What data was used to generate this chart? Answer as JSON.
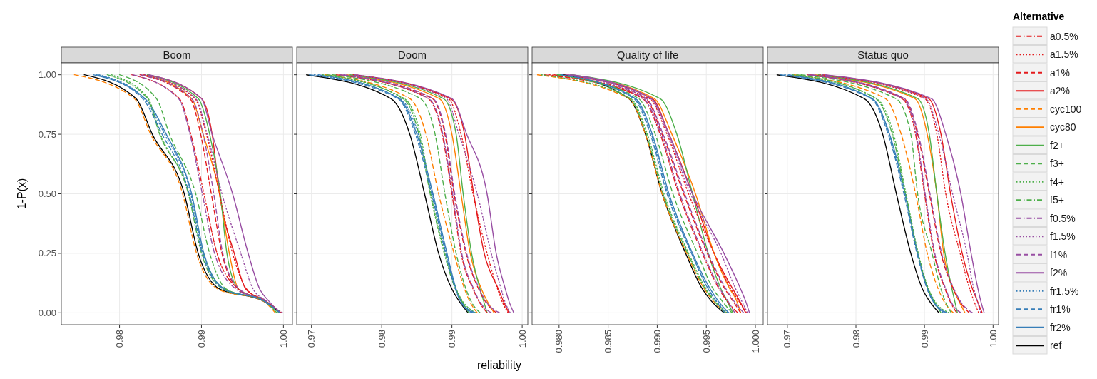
{
  "chart_data": [
    {
      "type": "line",
      "title": "Boom",
      "ylabel": "1-P(x)",
      "grid": true,
      "legend": "right",
      "legend_title": "Alternative",
      "xlim": [
        0.9729,
        1.0011
      ],
      "xticks": [
        0.98,
        0.99,
        {
          "value": 1,
          "label": "1.00"
        }
      ],
      "ylim": [
        -0.05,
        1.05
      ],
      "yticks": [
        {
          "value": 0,
          "label": "0.00"
        },
        0.25,
        {
          "value": 0.5,
          "label": "0.50"
        },
        0.75,
        {
          "value": 1,
          "label": "1.00"
        }
      ],
      "series": [
        {
          "name": "a0.5%",
          "color": "#e41a1c",
          "line_style": "dashdot",
          "x": [
            0.9815,
            0.9873,
            0.9887,
            0.9903,
            0.9919,
            0.9945,
            0.9977,
            0.9997
          ],
          "values": [
            1,
            0.9,
            0.75,
            0.5,
            0.25,
            0.1,
            0.05,
            0
          ]
        },
        {
          "name": "a1.5%",
          "color": "#e41a1c",
          "line_style": "dotted",
          "x": [
            0.983,
            0.9892,
            0.9906,
            0.9922,
            0.9938,
            0.9955,
            0.9978,
            0.9998
          ],
          "values": [
            1,
            0.9,
            0.75,
            0.5,
            0.25,
            0.1,
            0.05,
            0
          ]
        },
        {
          "name": "a1%",
          "color": "#e41a1c",
          "line_style": "dashed",
          "x": [
            0.9825,
            0.9886,
            0.9899,
            0.9912,
            0.9925,
            0.9945,
            0.9977,
            0.9996
          ],
          "values": [
            1,
            0.9,
            0.75,
            0.5,
            0.25,
            0.1,
            0.05,
            0
          ]
        },
        {
          "name": "a2%",
          "color": "#e41a1c",
          "line_style": "solid",
          "x": [
            0.9835,
            0.99,
            0.9913,
            0.9922,
            0.994,
            0.9954,
            0.9978,
            0.9996
          ],
          "values": [
            1,
            0.9,
            0.75,
            0.5,
            0.25,
            0.1,
            0.05,
            0
          ]
        },
        {
          "name": "cyc100",
          "color": "#ff7f00",
          "line_style": "dashed",
          "x": [
            0.9745,
            0.9818,
            0.9838,
            0.9877,
            0.9894,
            0.992,
            0.9975,
            0.999
          ],
          "values": [
            1,
            0.9,
            0.75,
            0.5,
            0.25,
            0.1,
            0.05,
            0
          ]
        },
        {
          "name": "cyc80",
          "color": "#ff7f00",
          "line_style": "solid",
          "x": [
            0.9829,
            0.9888,
            0.9902,
            0.9922,
            0.9934,
            0.9945,
            0.9977,
            0.9996
          ],
          "values": [
            1,
            0.9,
            0.75,
            0.5,
            0.25,
            0.1,
            0.05,
            0
          ]
        },
        {
          "name": "f2+",
          "color": "#4daf4a",
          "line_style": "solid",
          "x": [
            0.9834,
            0.9896,
            0.991,
            0.9923,
            0.9931,
            0.9945,
            0.9978,
            0.9996
          ],
          "values": [
            1,
            0.9,
            0.75,
            0.5,
            0.25,
            0.1,
            0.05,
            0
          ]
        },
        {
          "name": "f3+",
          "color": "#4daf4a",
          "line_style": "dashed",
          "x": [
            0.98,
            0.9845,
            0.9861,
            0.9893,
            0.991,
            0.993,
            0.9976,
            0.9995
          ],
          "values": [
            1,
            0.9,
            0.75,
            0.5,
            0.25,
            0.1,
            0.05,
            0
          ]
        },
        {
          "name": "f4+",
          "color": "#4daf4a",
          "line_style": "dotted",
          "x": [
            0.979,
            0.9835,
            0.985,
            0.9885,
            0.9902,
            0.9928,
            0.9976,
            0.9993
          ],
          "values": [
            1,
            0.9,
            0.75,
            0.5,
            0.25,
            0.1,
            0.05,
            0
          ]
        },
        {
          "name": "f5+",
          "color": "#4daf4a",
          "line_style": "dashdot",
          "x": [
            0.9785,
            0.9834,
            0.9849,
            0.9884,
            0.99,
            0.9926,
            0.9976,
            0.9992
          ],
          "values": [
            1,
            0.9,
            0.75,
            0.5,
            0.25,
            0.1,
            0.05,
            0
          ]
        },
        {
          "name": "f0.5%",
          "color": "#984ea3",
          "line_style": "dashdot",
          "x": [
            0.9816,
            0.9872,
            0.9886,
            0.9901,
            0.9916,
            0.9942,
            0.9977,
            0.9996
          ],
          "values": [
            1,
            0.9,
            0.75,
            0.5,
            0.25,
            0.1,
            0.05,
            0
          ]
        },
        {
          "name": "f1.5%",
          "color": "#984ea3",
          "line_style": "dotted",
          "x": [
            0.9831,
            0.9893,
            0.9907,
            0.9925,
            0.9948,
            0.9963,
            0.9979,
            0.9999
          ],
          "values": [
            1,
            0.9,
            0.75,
            0.5,
            0.25,
            0.1,
            0.05,
            0
          ]
        },
        {
          "name": "f1%",
          "color": "#984ea3",
          "line_style": "dashed",
          "x": [
            0.9826,
            0.9888,
            0.9902,
            0.9915,
            0.9926,
            0.9946,
            0.9977,
            0.9996
          ],
          "values": [
            1,
            0.9,
            0.75,
            0.5,
            0.25,
            0.1,
            0.05,
            0
          ]
        },
        {
          "name": "f2%",
          "color": "#984ea3",
          "line_style": "solid",
          "x": [
            0.9836,
            0.99,
            0.9913,
            0.9938,
            0.9957,
            0.9971,
            0.9982,
            0.9996
          ],
          "values": [
            1,
            0.9,
            0.75,
            0.5,
            0.25,
            0.1,
            0.05,
            0
          ]
        },
        {
          "name": "fr1.5%",
          "color": "#377eb8",
          "line_style": "dotted",
          "x": [
            0.9775,
            0.983,
            0.9855,
            0.9887,
            0.9902,
            0.9928,
            0.9976,
            0.9996
          ],
          "values": [
            1,
            0.9,
            0.75,
            0.5,
            0.25,
            0.1,
            0.05,
            0
          ]
        },
        {
          "name": "fr1%",
          "color": "#377eb8",
          "line_style": "dashed",
          "x": [
            0.9772,
            0.9828,
            0.9852,
            0.9885,
            0.9901,
            0.9927,
            0.9976,
            0.9996
          ],
          "values": [
            1,
            0.9,
            0.75,
            0.5,
            0.25,
            0.1,
            0.05,
            0
          ]
        },
        {
          "name": "fr2%",
          "color": "#377eb8",
          "line_style": "solid",
          "x": [
            0.9768,
            0.9831,
            0.9857,
            0.9888,
            0.9903,
            0.9928,
            0.9976,
            0.9996
          ],
          "values": [
            1,
            0.9,
            0.75,
            0.5,
            0.25,
            0.1,
            0.05,
            0
          ]
        },
        {
          "name": "ref",
          "color": "#000000",
          "line_style": "solid",
          "x": [
            0.9757,
            0.982,
            0.984,
            0.9879,
            0.9896,
            0.9922,
            0.9975,
            0.9996
          ],
          "values": [
            1,
            0.9,
            0.75,
            0.5,
            0.25,
            0.1,
            0.05,
            0
          ]
        }
      ]
    },
    {
      "type": "line",
      "title": "Doom",
      "xlabel": "reliability",
      "grid": true,
      "tick_labels": "x",
      "xlim": [
        0.9679,
        1.0008
      ],
      "xticks": [
        0.97,
        0.98,
        0.99,
        {
          "value": 1,
          "label": "1.00"
        }
      ],
      "ylim": [
        -0.05,
        1.05
      ],
      "yticks": [
        0,
        0.25,
        0.5,
        0.75,
        1
      ],
      "series": [
        {
          "color": "#e41a1c",
          "line_style": "dashdot",
          "x": [
            0.974,
            0.9866,
            0.9886,
            0.99,
            0.9913,
            0.993,
            0.9938,
            0.995
          ],
          "values": [
            1,
            0.9,
            0.75,
            0.5,
            0.25,
            0.1,
            0.05,
            0
          ]
        },
        {
          "color": "#e41a1c",
          "line_style": "dotted",
          "x": [
            0.976,
            0.9895,
            0.9913,
            0.993,
            0.995,
            0.9965,
            0.9971,
            0.998
          ],
          "values": [
            1,
            0.9,
            0.75,
            0.5,
            0.25,
            0.1,
            0.05,
            0
          ]
        },
        {
          "color": "#e41a1c",
          "line_style": "dashed",
          "x": [
            0.9735,
            0.9872,
            0.989,
            0.9903,
            0.992,
            0.9938,
            0.9947,
            0.9963
          ],
          "values": [
            1,
            0.9,
            0.75,
            0.5,
            0.25,
            0.1,
            0.05,
            0
          ]
        },
        {
          "color": "#e41a1c",
          "line_style": "solid",
          "x": [
            0.9759,
            0.9898,
            0.9918,
            0.9931,
            0.9946,
            0.9966,
            0.9973,
            0.9981
          ],
          "values": [
            1,
            0.9,
            0.75,
            0.5,
            0.25,
            0.1,
            0.05,
            0
          ]
        },
        {
          "color": "#ff7f00",
          "line_style": "dashed",
          "x": [
            0.972,
            0.984,
            0.9863,
            0.9881,
            0.9903,
            0.9918,
            0.9925,
            0.9936
          ],
          "values": [
            1,
            0.9,
            0.75,
            0.5,
            0.25,
            0.1,
            0.05,
            0
          ]
        },
        {
          "color": "#ff7f00",
          "line_style": "solid",
          "x": [
            0.975,
            0.9882,
            0.99,
            0.9913,
            0.9926,
            0.9942,
            0.995,
            0.996
          ],
          "values": [
            1,
            0.9,
            0.75,
            0.5,
            0.25,
            0.1,
            0.05,
            0
          ]
        },
        {
          "color": "#4daf4a",
          "line_style": "solid",
          "x": [
            0.9755,
            0.9888,
            0.9906,
            0.9916,
            0.9928,
            0.994,
            0.9945,
            0.995
          ],
          "values": [
            1,
            0.9,
            0.75,
            0.5,
            0.25,
            0.1,
            0.05,
            0
          ]
        },
        {
          "color": "#4daf4a",
          "line_style": "dashed",
          "x": [
            0.973,
            0.9855,
            0.9876,
            0.989,
            0.9906,
            0.992,
            0.9927,
            0.994
          ],
          "values": [
            1,
            0.9,
            0.75,
            0.5,
            0.25,
            0.1,
            0.05,
            0
          ]
        },
        {
          "color": "#4daf4a",
          "line_style": "dotted",
          "x": [
            0.9716,
            0.9832,
            0.9855,
            0.987,
            0.989,
            0.9906,
            0.9915,
            0.9934
          ],
          "values": [
            1,
            0.9,
            0.75,
            0.5,
            0.25,
            0.1,
            0.05,
            0
          ]
        },
        {
          "color": "#4daf4a",
          "line_style": "dashdot",
          "x": [
            0.9722,
            0.983,
            0.9853,
            0.9869,
            0.9889,
            0.9905,
            0.9914,
            0.9924
          ],
          "values": [
            1,
            0.9,
            0.75,
            0.5,
            0.25,
            0.1,
            0.05,
            0
          ]
        },
        {
          "color": "#984ea3",
          "line_style": "dashdot",
          "x": [
            0.9741,
            0.9867,
            0.9887,
            0.9901,
            0.9914,
            0.9931,
            0.9939,
            0.9956
          ],
          "values": [
            1,
            0.9,
            0.75,
            0.5,
            0.25,
            0.1,
            0.05,
            0
          ]
        },
        {
          "color": "#984ea3",
          "line_style": "dotted",
          "x": [
            0.9761,
            0.9892,
            0.991,
            0.9936,
            0.9956,
            0.997,
            0.9975,
            0.9983
          ],
          "values": [
            1,
            0.9,
            0.75,
            0.5,
            0.25,
            0.1,
            0.05,
            0
          ]
        },
        {
          "color": "#984ea3",
          "line_style": "dashed",
          "x": [
            0.9746,
            0.9873,
            0.9891,
            0.9904,
            0.9921,
            0.9939,
            0.9948,
            0.9968
          ],
          "values": [
            1,
            0.9,
            0.75,
            0.5,
            0.25,
            0.1,
            0.05,
            0
          ]
        },
        {
          "color": "#984ea3",
          "line_style": "solid",
          "x": [
            0.9762,
            0.99,
            0.9921,
            0.995,
            0.9963,
            0.9976,
            0.9981,
            0.9988
          ],
          "values": [
            1,
            0.9,
            0.75,
            0.5,
            0.25,
            0.1,
            0.05,
            0
          ]
        },
        {
          "color": "#377eb8",
          "line_style": "dotted",
          "x": [
            0.9704,
            0.9826,
            0.9852,
            0.9872,
            0.9892,
            0.9905,
            0.9912,
            0.9927
          ],
          "values": [
            1,
            0.9,
            0.75,
            0.5,
            0.25,
            0.1,
            0.05,
            0
          ]
        },
        {
          "color": "#377eb8",
          "line_style": "dashed",
          "x": [
            0.9697,
            0.9823,
            0.9848,
            0.9871,
            0.9891,
            0.9905,
            0.9912,
            0.9933
          ],
          "values": [
            1,
            0.9,
            0.75,
            0.5,
            0.25,
            0.1,
            0.05,
            0
          ]
        },
        {
          "color": "#377eb8",
          "line_style": "solid",
          "x": [
            0.971,
            0.9825,
            0.985,
            0.9873,
            0.9893,
            0.9906,
            0.9913,
            0.993
          ],
          "values": [
            1,
            0.9,
            0.75,
            0.5,
            0.25,
            0.1,
            0.05,
            0
          ]
        },
        {
          "color": "#000000",
          "line_style": "solid",
          "x": [
            0.9693,
            0.9813,
            0.984,
            0.9861,
            0.9881,
            0.99,
            0.991,
            0.9923
          ],
          "values": [
            1,
            0.9,
            0.75,
            0.5,
            0.25,
            0.1,
            0.05,
            0
          ]
        }
      ]
    },
    {
      "type": "line",
      "title": "Quality of life",
      "grid": true,
      "tick_labels": "x",
      "xlim": [
        0.97725,
        1.0008
      ],
      "xticks": [
        {
          "value": 0.98,
          "label": "0.980"
        },
        0.985,
        {
          "value": 0.99,
          "label": "0.990"
        },
        0.995,
        {
          "value": 1,
          "label": "1.000"
        }
      ],
      "ylim": [
        -0.05,
        1.05
      ],
      "yticks": [
        0,
        0.25,
        0.5,
        0.75,
        1
      ],
      "series": [
        {
          "color": "#e41a1c",
          "line_style": "dashdot",
          "x": [
            0.9795,
            0.9885,
            0.9903,
            0.9922,
            0.9946,
            0.9963,
            0.9971,
            0.9982
          ],
          "values": [
            1,
            0.9,
            0.75,
            0.5,
            0.25,
            0.1,
            0.05,
            0
          ]
        },
        {
          "color": "#e41a1c",
          "line_style": "dotted",
          "x": [
            0.979,
            0.9892,
            0.991,
            0.9932,
            0.9958,
            0.9975,
            0.9983,
            0.9991
          ],
          "values": [
            1,
            0.9,
            0.75,
            0.5,
            0.25,
            0.1,
            0.05,
            0
          ]
        },
        {
          "color": "#e41a1c",
          "line_style": "dashed",
          "x": [
            0.9785,
            0.9888,
            0.9905,
            0.9927,
            0.9951,
            0.9969,
            0.9977,
            0.9985
          ],
          "values": [
            1,
            0.9,
            0.75,
            0.5,
            0.25,
            0.1,
            0.05,
            0
          ]
        },
        {
          "color": "#e41a1c",
          "line_style": "solid",
          "x": [
            0.9805,
            0.9895,
            0.9912,
            0.9936,
            0.9958,
            0.9977,
            0.9984,
            0.999
          ],
          "values": [
            1,
            0.9,
            0.75,
            0.5,
            0.25,
            0.1,
            0.05,
            0
          ]
        },
        {
          "color": "#ff7f00",
          "line_style": "dashed",
          "x": [
            0.9778,
            0.9871,
            0.9888,
            0.9905,
            0.993,
            0.9948,
            0.9957,
            0.997
          ],
          "values": [
            1,
            0.9,
            0.75,
            0.5,
            0.25,
            0.1,
            0.05,
            0
          ]
        },
        {
          "color": "#ff7f00",
          "line_style": "solid",
          "x": [
            0.9812,
            0.9897,
            0.9915,
            0.9939,
            0.9958,
            0.9974,
            0.9981,
            0.9985
          ],
          "values": [
            1,
            0.9,
            0.75,
            0.5,
            0.25,
            0.1,
            0.05,
            0
          ]
        },
        {
          "color": "#4daf4a",
          "line_style": "solid",
          "x": [
            0.9813,
            0.9903,
            0.992,
            0.9936,
            0.9952,
            0.9965,
            0.9971,
            0.9977
          ],
          "values": [
            1,
            0.9,
            0.75,
            0.5,
            0.25,
            0.1,
            0.05,
            0
          ]
        },
        {
          "color": "#4daf4a",
          "line_style": "dashed",
          "x": [
            0.9798,
            0.9881,
            0.9898,
            0.9916,
            0.9941,
            0.9957,
            0.9966,
            0.9976
          ],
          "values": [
            1,
            0.9,
            0.75,
            0.5,
            0.25,
            0.1,
            0.05,
            0
          ]
        },
        {
          "color": "#4daf4a",
          "line_style": "dotted",
          "x": [
            0.9782,
            0.9873,
            0.989,
            0.9907,
            0.9932,
            0.995,
            0.9959,
            0.9971
          ],
          "values": [
            1,
            0.9,
            0.75,
            0.5,
            0.25,
            0.1,
            0.05,
            0
          ]
        },
        {
          "color": "#4daf4a",
          "line_style": "dashdot",
          "x": [
            0.9799,
            0.9872,
            0.9889,
            0.9906,
            0.9931,
            0.9949,
            0.9958,
            0.9969
          ],
          "values": [
            1,
            0.9,
            0.75,
            0.5,
            0.25,
            0.1,
            0.05,
            0
          ]
        },
        {
          "color": "#984ea3",
          "line_style": "dashdot",
          "x": [
            0.9807,
            0.9886,
            0.9904,
            0.9923,
            0.9947,
            0.9964,
            0.9972,
            0.9979
          ],
          "values": [
            1,
            0.9,
            0.75,
            0.5,
            0.25,
            0.1,
            0.05,
            0
          ]
        },
        {
          "color": "#984ea3",
          "line_style": "dotted",
          "x": [
            0.9809,
            0.9893,
            0.9911,
            0.9934,
            0.9965,
            0.998,
            0.9986,
            0.9992
          ],
          "values": [
            1,
            0.9,
            0.75,
            0.5,
            0.25,
            0.1,
            0.05,
            0
          ]
        },
        {
          "color": "#984ea3",
          "line_style": "dashed",
          "x": [
            0.9811,
            0.9889,
            0.9906,
            0.9928,
            0.9952,
            0.997,
            0.9978,
            0.9988
          ],
          "values": [
            1,
            0.9,
            0.75,
            0.5,
            0.25,
            0.1,
            0.05,
            0
          ]
        },
        {
          "color": "#984ea3",
          "line_style": "solid",
          "x": [
            0.9814,
            0.9894,
            0.9912,
            0.9936,
            0.9968,
            0.9985,
            0.999,
            0.9994
          ],
          "values": [
            1,
            0.9,
            0.75,
            0.5,
            0.25,
            0.1,
            0.05,
            0
          ]
        },
        {
          "color": "#377eb8",
          "line_style": "dotted",
          "x": [
            0.9803,
            0.9877,
            0.9894,
            0.9911,
            0.9935,
            0.9952,
            0.996,
            0.9972
          ],
          "values": [
            1,
            0.9,
            0.75,
            0.5,
            0.25,
            0.1,
            0.05,
            0
          ]
        },
        {
          "color": "#377eb8",
          "line_style": "dashed",
          "x": [
            0.9802,
            0.9876,
            0.9893,
            0.991,
            0.9935,
            0.9952,
            0.996,
            0.9969
          ],
          "values": [
            1,
            0.9,
            0.75,
            0.5,
            0.25,
            0.1,
            0.05,
            0
          ]
        },
        {
          "color": "#377eb8",
          "line_style": "solid",
          "x": [
            0.9801,
            0.9878,
            0.9895,
            0.9912,
            0.9936,
            0.9954,
            0.9962,
            0.9973
          ],
          "values": [
            1,
            0.9,
            0.75,
            0.5,
            0.25,
            0.1,
            0.05,
            0
          ]
        },
        {
          "color": "#000000",
          "line_style": "solid",
          "x": [
            0.9804,
            0.9871,
            0.9888,
            0.9905,
            0.9929,
            0.9946,
            0.9955,
            0.9968
          ],
          "values": [
            1,
            0.9,
            0.75,
            0.5,
            0.25,
            0.1,
            0.05,
            0
          ]
        }
      ]
    },
    {
      "type": "line",
      "title": "Status quo",
      "grid": true,
      "tick_labels": "x",
      "xlim": [
        0.9671,
        1.0008
      ],
      "xticks": [
        0.97,
        0.98,
        0.99,
        {
          "value": 1,
          "label": "1.00"
        }
      ],
      "ylim": [
        -0.05,
        1.05
      ],
      "yticks": [
        0,
        0.25,
        0.5,
        0.75,
        1
      ],
      "series": [
        {
          "color": "#e41a1c",
          "line_style": "dashdot",
          "x": [
            0.973,
            0.9867,
            0.9887,
            0.99,
            0.9914,
            0.993,
            0.9937,
            0.9947
          ],
          "values": [
            1,
            0.9,
            0.75,
            0.5,
            0.25,
            0.1,
            0.05,
            0
          ]
        },
        {
          "color": "#e41a1c",
          "line_style": "dotted",
          "x": [
            0.9747,
            0.99,
            0.9918,
            0.9931,
            0.9952,
            0.9966,
            0.9972,
            0.9979
          ],
          "values": [
            1,
            0.9,
            0.75,
            0.5,
            0.25,
            0.1,
            0.05,
            0
          ]
        },
        {
          "color": "#e41a1c",
          "line_style": "dashed",
          "x": [
            0.9733,
            0.987,
            0.989,
            0.9907,
            0.9924,
            0.9942,
            0.9951,
            0.9965
          ],
          "values": [
            1,
            0.9,
            0.75,
            0.5,
            0.25,
            0.1,
            0.05,
            0
          ]
        },
        {
          "color": "#e41a1c",
          "line_style": "solid",
          "x": [
            0.9752,
            0.9906,
            0.9924,
            0.9938,
            0.9955,
            0.997,
            0.9977,
            0.9984
          ],
          "values": [
            1,
            0.9,
            0.75,
            0.5,
            0.25,
            0.1,
            0.05,
            0
          ]
        },
        {
          "color": "#ff7f00",
          "line_style": "dashed",
          "x": [
            0.971,
            0.9843,
            0.9866,
            0.9887,
            0.9904,
            0.992,
            0.9928,
            0.9942
          ],
          "values": [
            1,
            0.9,
            0.75,
            0.5,
            0.25,
            0.1,
            0.05,
            0
          ]
        },
        {
          "color": "#ff7f00",
          "line_style": "solid",
          "x": [
            0.974,
            0.9886,
            0.9904,
            0.9918,
            0.9928,
            0.9942,
            0.995,
            0.9959
          ],
          "values": [
            1,
            0.9,
            0.75,
            0.5,
            0.25,
            0.1,
            0.05,
            0
          ]
        },
        {
          "color": "#4daf4a",
          "line_style": "solid",
          "x": [
            0.9745,
            0.989,
            0.9907,
            0.9918,
            0.993,
            0.994,
            0.9944,
            0.9948
          ],
          "values": [
            1,
            0.9,
            0.75,
            0.5,
            0.25,
            0.1,
            0.05,
            0
          ]
        },
        {
          "color": "#4daf4a",
          "line_style": "dashed",
          "x": [
            0.972,
            0.9858,
            0.988,
            0.989,
            0.9911,
            0.9924,
            0.993,
            0.9939
          ],
          "values": [
            1,
            0.9,
            0.75,
            0.5,
            0.25,
            0.1,
            0.05,
            0
          ]
        },
        {
          "color": "#4daf4a",
          "line_style": "dotted",
          "x": [
            0.9708,
            0.983,
            0.9855,
            0.9873,
            0.9891,
            0.9906,
            0.9915,
            0.9936
          ],
          "values": [
            1,
            0.9,
            0.75,
            0.5,
            0.25,
            0.1,
            0.05,
            0
          ]
        },
        {
          "color": "#4daf4a",
          "line_style": "dashdot",
          "x": [
            0.9714,
            0.9829,
            0.9853,
            0.9872,
            0.989,
            0.9905,
            0.9914,
            0.9924
          ],
          "values": [
            1,
            0.9,
            0.75,
            0.5,
            0.25,
            0.1,
            0.05,
            0
          ]
        },
        {
          "color": "#984ea3",
          "line_style": "dashdot",
          "x": [
            0.9731,
            0.9868,
            0.9888,
            0.9901,
            0.9915,
            0.9931,
            0.9938,
            0.9953
          ],
          "values": [
            1,
            0.9,
            0.75,
            0.5,
            0.25,
            0.1,
            0.05,
            0
          ]
        },
        {
          "color": "#984ea3",
          "line_style": "dotted",
          "x": [
            0.9751,
            0.9902,
            0.9921,
            0.9941,
            0.9962,
            0.9972,
            0.9977,
            0.9982
          ],
          "values": [
            1,
            0.9,
            0.75,
            0.5,
            0.25,
            0.1,
            0.05,
            0
          ]
        },
        {
          "color": "#984ea3",
          "line_style": "dashed",
          "x": [
            0.9736,
            0.9871,
            0.9891,
            0.9908,
            0.9925,
            0.9943,
            0.9952,
            0.997
          ],
          "values": [
            1,
            0.9,
            0.75,
            0.5,
            0.25,
            0.1,
            0.05,
            0
          ]
        },
        {
          "color": "#984ea3",
          "line_style": "solid",
          "x": [
            0.9755,
            0.991,
            0.9931,
            0.9953,
            0.9968,
            0.9978,
            0.9982,
            0.9987
          ],
          "values": [
            1,
            0.9,
            0.75,
            0.5,
            0.25,
            0.1,
            0.05,
            0
          ]
        },
        {
          "color": "#377eb8",
          "line_style": "dotted",
          "x": [
            0.9696,
            0.9823,
            0.9848,
            0.9871,
            0.989,
            0.9904,
            0.9912,
            0.9927
          ],
          "values": [
            1,
            0.9,
            0.75,
            0.5,
            0.25,
            0.1,
            0.05,
            0
          ]
        },
        {
          "color": "#377eb8",
          "line_style": "dashed",
          "x": [
            0.969,
            0.9822,
            0.9847,
            0.987,
            0.9889,
            0.9904,
            0.9912,
            0.9933
          ],
          "values": [
            1,
            0.9,
            0.75,
            0.5,
            0.25,
            0.1,
            0.05,
            0
          ]
        },
        {
          "color": "#377eb8",
          "line_style": "solid",
          "x": [
            0.9702,
            0.9824,
            0.9849,
            0.9872,
            0.989,
            0.9905,
            0.9913,
            0.993
          ],
          "values": [
            1,
            0.9,
            0.75,
            0.5,
            0.25,
            0.1,
            0.05,
            0
          ]
        },
        {
          "color": "#000000",
          "line_style": "solid",
          "x": [
            0.9685,
            0.9812,
            0.9839,
            0.9859,
            0.988,
            0.9897,
            0.9907,
            0.9921
          ],
          "values": [
            1,
            0.9,
            0.75,
            0.5,
            0.25,
            0.1,
            0.05,
            0
          ]
        }
      ]
    }
  ]
}
